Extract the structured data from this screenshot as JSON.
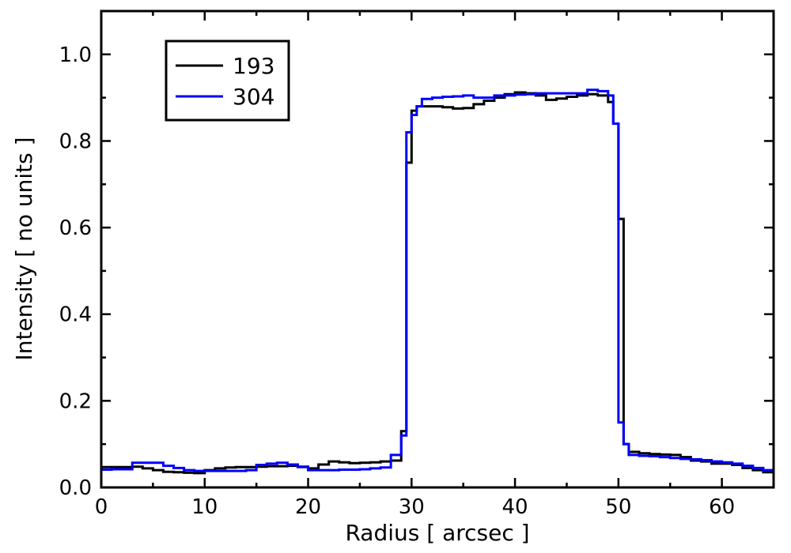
{
  "chart_data": {
    "type": "line",
    "step": true,
    "title": "",
    "xlabel": "Radius [ arcsec ]",
    "ylabel": "Intensity [ no units ]",
    "xlim": [
      0,
      65
    ],
    "ylim": [
      0.0,
      1.1
    ],
    "xticks": [
      0,
      10,
      20,
      30,
      40,
      50,
      60
    ],
    "xtick_labels": [
      "0",
      "10",
      "20",
      "30",
      "40",
      "50",
      "60"
    ],
    "yticks": [
      0.0,
      0.2,
      0.4,
      0.6,
      0.8,
      1.0
    ],
    "ytick_labels": [
      "0.0",
      "0.2",
      "0.4",
      "0.6",
      "0.8",
      "1.0"
    ],
    "grid": false,
    "legend_position": "top-left",
    "series": [
      {
        "name": "193",
        "color": "#000000",
        "x": [
          0,
          1,
          2,
          3,
          4,
          5,
          6,
          7,
          8,
          9,
          10,
          11,
          12,
          13,
          14,
          15,
          16,
          17,
          18,
          19,
          20,
          21,
          22,
          23,
          24,
          25,
          26,
          27,
          28,
          29,
          29.5,
          30,
          30.5,
          31,
          32,
          33,
          34,
          35,
          36,
          37,
          38,
          39,
          40,
          41,
          42,
          43,
          44,
          45,
          46,
          47,
          48,
          49,
          49.5,
          50,
          50.5,
          51,
          52,
          53,
          54,
          55,
          56,
          57,
          58,
          59,
          60,
          61,
          62,
          63,
          64,
          65
        ],
        "y": [
          0.047,
          0.047,
          0.047,
          0.048,
          0.044,
          0.04,
          0.036,
          0.035,
          0.034,
          0.033,
          0.04,
          0.044,
          0.046,
          0.047,
          0.047,
          0.048,
          0.049,
          0.049,
          0.05,
          0.048,
          0.044,
          0.053,
          0.06,
          0.058,
          0.056,
          0.057,
          0.058,
          0.06,
          0.062,
          0.13,
          0.75,
          0.87,
          0.88,
          0.88,
          0.88,
          0.878,
          0.875,
          0.876,
          0.885,
          0.893,
          0.9,
          0.908,
          0.912,
          0.91,
          0.905,
          0.895,
          0.898,
          0.902,
          0.905,
          0.908,
          0.905,
          0.89,
          0.84,
          0.62,
          0.1,
          0.082,
          0.079,
          0.077,
          0.076,
          0.075,
          0.07,
          0.062,
          0.06,
          0.055,
          0.055,
          0.052,
          0.045,
          0.04,
          0.035,
          0.035
        ]
      },
      {
        "name": "304",
        "color": "#0000ff",
        "x": [
          0,
          1,
          2,
          3,
          4,
          5,
          6,
          7,
          8,
          9,
          10,
          11,
          12,
          13,
          14,
          15,
          16,
          17,
          18,
          19,
          20,
          21,
          22,
          23,
          24,
          25,
          26,
          27,
          28,
          29,
          29.5,
          30,
          30.5,
          31,
          32,
          33,
          34,
          35,
          36,
          37,
          38,
          39,
          40,
          41,
          42,
          43,
          44,
          45,
          46,
          47,
          48,
          49,
          49.5,
          50,
          50.5,
          51,
          52,
          53,
          54,
          55,
          56,
          57,
          58,
          59,
          60,
          61,
          62,
          63,
          64,
          65
        ],
        "y": [
          0.041,
          0.042,
          0.042,
          0.057,
          0.057,
          0.057,
          0.05,
          0.045,
          0.04,
          0.038,
          0.038,
          0.038,
          0.038,
          0.038,
          0.04,
          0.052,
          0.055,
          0.057,
          0.053,
          0.047,
          0.04,
          0.04,
          0.04,
          0.041,
          0.041,
          0.042,
          0.044,
          0.046,
          0.075,
          0.12,
          0.82,
          0.86,
          0.88,
          0.897,
          0.9,
          0.902,
          0.903,
          0.905,
          0.9,
          0.9,
          0.905,
          0.905,
          0.907,
          0.908,
          0.91,
          0.91,
          0.91,
          0.91,
          0.91,
          0.918,
          0.915,
          0.905,
          0.84,
          0.15,
          0.1,
          0.075,
          0.073,
          0.072,
          0.07,
          0.068,
          0.066,
          0.065,
          0.063,
          0.06,
          0.058,
          0.055,
          0.05,
          0.045,
          0.04,
          0.025
        ]
      }
    ]
  }
}
